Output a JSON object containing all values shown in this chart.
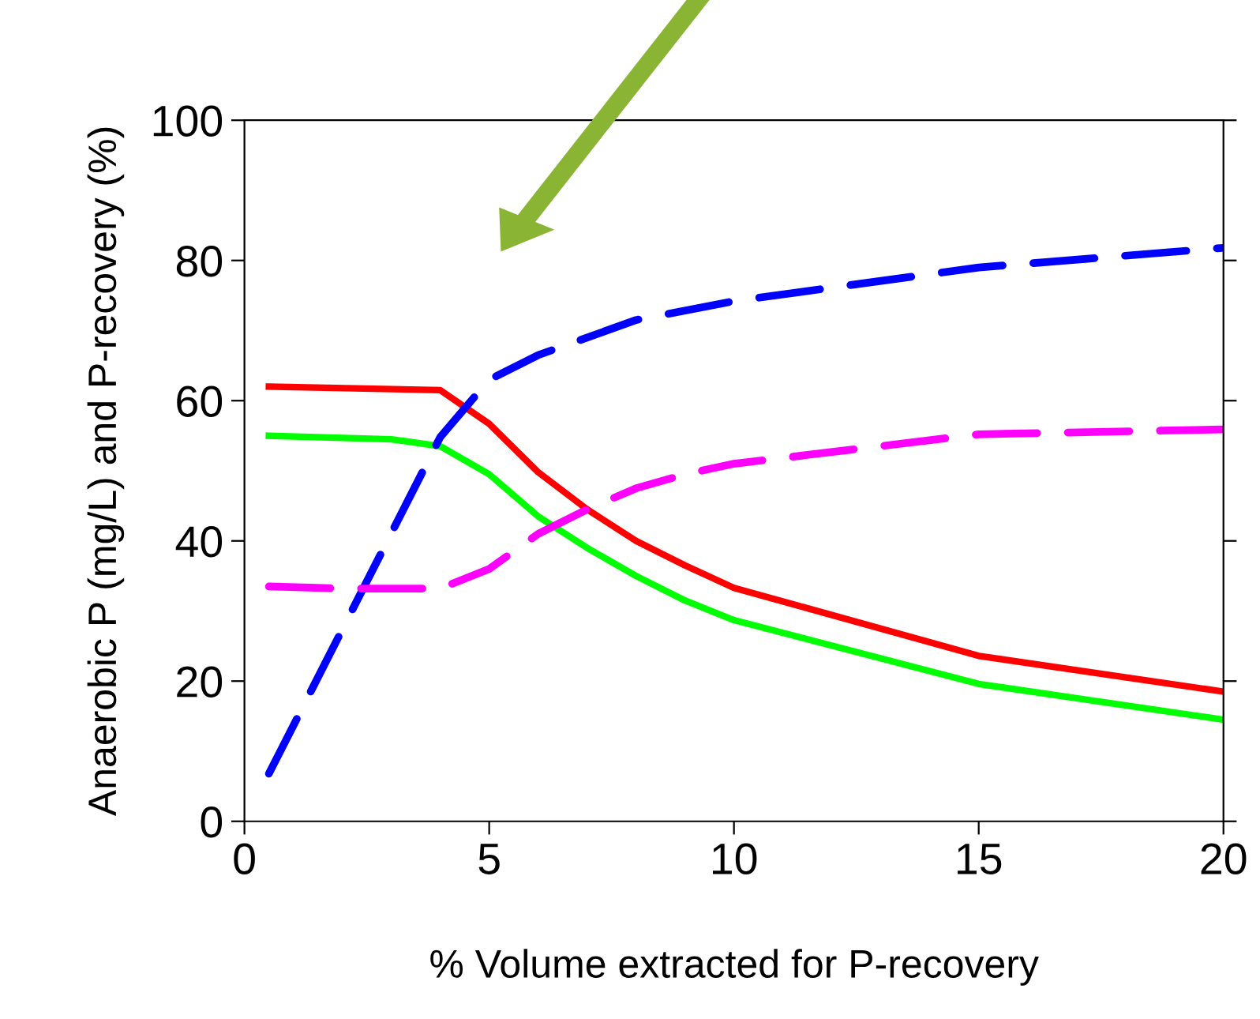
{
  "chart_data": {
    "type": "line",
    "xlabel": "% Volume extracted for P-recovery",
    "ylabel": "Anaerobic P (mg/L) and P-recovery (%)",
    "xlim": [
      0,
      20
    ],
    "ylim": [
      0,
      100
    ],
    "xticks": [
      0,
      5,
      10,
      15,
      20
    ],
    "yticks": [
      0,
      20,
      40,
      60,
      80,
      100
    ],
    "grid": false,
    "marker": "none",
    "series": [
      {
        "color": "#ff0000",
        "line_style": "solid",
        "x": [
          0.5,
          4,
          5,
          6,
          7,
          8,
          9,
          10,
          15,
          20
        ],
        "values": [
          62,
          61.5,
          56.7,
          49.8,
          44.5,
          40,
          36.5,
          33.3,
          23.6,
          18.5
        ]
      },
      {
        "color": "#00ff00",
        "line_style": "solid",
        "x": [
          0.5,
          3,
          4,
          5,
          6,
          7,
          8,
          9,
          10,
          15,
          20
        ],
        "values": [
          55,
          54.5,
          53.5,
          49.5,
          43.5,
          39,
          35,
          31.5,
          28.7,
          19.6,
          14.5
        ]
      },
      {
        "color": "#0000ff",
        "line_style": "dashed",
        "x": [
          0.5,
          4,
          5,
          6,
          8,
          10,
          15,
          20
        ],
        "values": [
          6.8,
          54.8,
          63,
          66.5,
          71.5,
          74.2,
          79,
          81.8
        ]
      },
      {
        "color": "#ff00ff",
        "line_style": "dashed",
        "x": [
          0.5,
          2,
          4,
          5,
          6,
          7,
          8,
          9,
          10,
          15,
          20
        ],
        "values": [
          33.5,
          33.2,
          33.2,
          36,
          41,
          44.5,
          47.5,
          49.5,
          51,
          55.2,
          55.9
        ]
      }
    ]
  }
}
